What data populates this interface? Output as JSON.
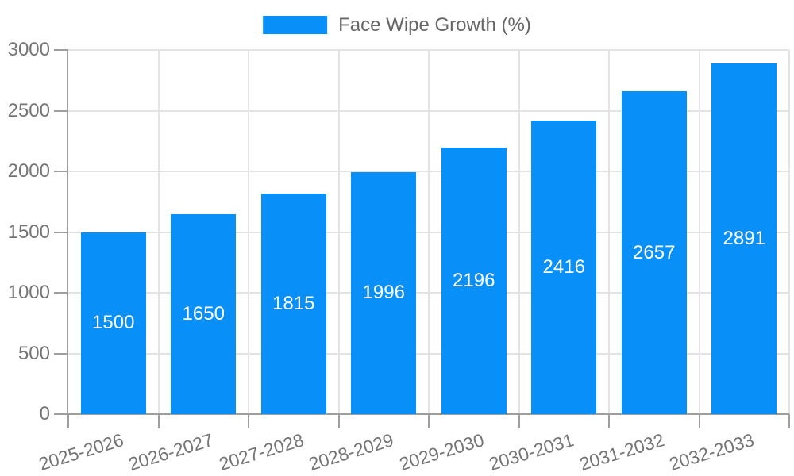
{
  "chart_data": {
    "type": "bar",
    "title": "",
    "legend_position": "top",
    "categories": [
      "2025-2026",
      "2026-2027",
      "2027-2028",
      "2028-2029",
      "2029-2030",
      "2030-2031",
      "2031-2032",
      "2032-2033"
    ],
    "series": [
      {
        "name": "Face Wipe Growth (%)",
        "values": [
          1500,
          1650,
          1815,
          1996,
          2196,
          2416,
          2657,
          2891
        ],
        "color": "#0890f8"
      }
    ],
    "value_labels": [
      "1500",
      "1650",
      "1815",
      "1996",
      "2196",
      "2416",
      "2657",
      "2891"
    ],
    "xlabel": "",
    "ylabel": "",
    "ylim": [
      0,
      3000
    ],
    "yticks": [
      0,
      500,
      1000,
      1500,
      2000,
      2500,
      3000
    ],
    "grid": true,
    "colors": {
      "bar": "#0890f8",
      "axis": "#9e9e9e",
      "grid": "#e3e3e3",
      "tick_label": "#757575",
      "legend_text": "#666666",
      "value_label": "#ffffff",
      "background": "#ffffff"
    }
  }
}
